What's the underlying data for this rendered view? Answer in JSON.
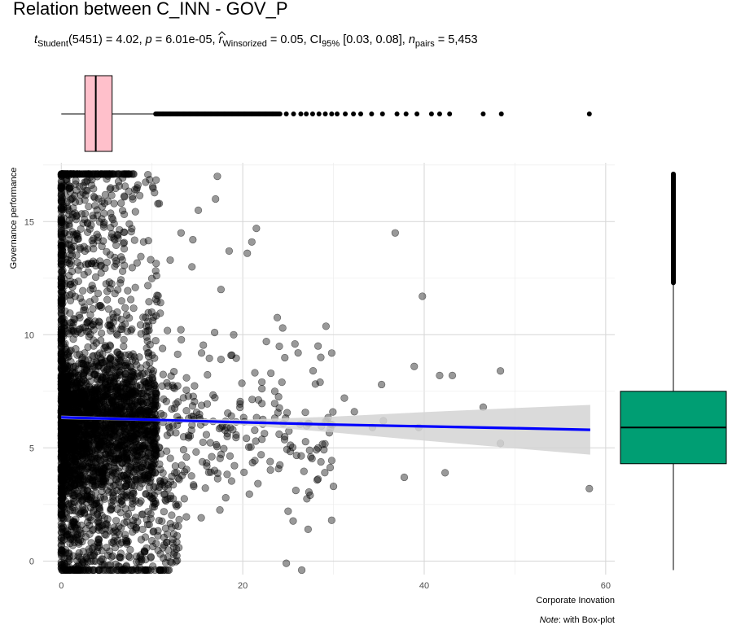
{
  "chart_data": {
    "type": "scatter",
    "title": "Relation between C_INN - GOV_P",
    "subtitle": {
      "t_symbol": "t",
      "t_sub": "Student",
      "df": "(5451) = 4.02, ",
      "p_symbol": "p",
      "p_value": " = 6.01e-05, ",
      "r_symbol": "r",
      "r_sub": "Winsorized",
      "r_value": " = 0.05, CI",
      "ci_sub": "95%",
      "ci_value": " [0.03, 0.08], ",
      "n_symbol": "n",
      "n_sub": "pairs",
      "n_value": " = 5,453"
    },
    "xlabel": "Corporate Inovation",
    "ylabel": "Governance performance",
    "caption_italic": "Note",
    "caption_rest": ": with Box-plot",
    "xlim": [
      -2,
      61
    ],
    "ylim": [
      -0.6,
      17.6
    ],
    "x_ticks": [
      0,
      20,
      40,
      60
    ],
    "y_ticks": [
      0,
      5,
      10,
      15
    ],
    "grid": true,
    "point_color": "#000000",
    "point_opacity": 0.4,
    "regression_line": {
      "color": "#0000ff",
      "points": [
        [
          0,
          6.35
        ],
        [
          10,
          6.24
        ],
        [
          20,
          6.13
        ],
        [
          30,
          6.03
        ],
        [
          40,
          5.95
        ],
        [
          50,
          5.87
        ],
        [
          58.3,
          5.8
        ]
      ],
      "ci_upper": [
        [
          0,
          6.43
        ],
        [
          10,
          6.3
        ],
        [
          20,
          6.25
        ],
        [
          30,
          6.38
        ],
        [
          40,
          6.58
        ],
        [
          50,
          6.76
        ],
        [
          58.3,
          6.9
        ]
      ],
      "ci_lower": [
        [
          0,
          6.27
        ],
        [
          10,
          6.18
        ],
        [
          20,
          6.01
        ],
        [
          30,
          5.68
        ],
        [
          40,
          5.32
        ],
        [
          50,
          4.98
        ],
        [
          58.3,
          4.7
        ]
      ],
      "ci_color": "#d3d3d3"
    },
    "x_marginal_boxplot": {
      "color": "#ffc0cb",
      "q1": 2.6,
      "median": 3.8,
      "q3": 5.6,
      "whisker_low": 0,
      "whisker_high": 10.4,
      "outliers": [
        10.6,
        11.2,
        12.0,
        12.8,
        13.5,
        14.2,
        15.0,
        15.8,
        16.5,
        17.2,
        18.0,
        18.8,
        19.5,
        20.2,
        21.0,
        21.8,
        22.5,
        23.3,
        24.1,
        24.8,
        25.6,
        26.4,
        27.0,
        27.7,
        28.4,
        29.1,
        29.8,
        30.4,
        31.3,
        32.2,
        33.0,
        34.2,
        35.4,
        37.0,
        38.0,
        39.2,
        40.8,
        41.7,
        42.8,
        46.5,
        48.5,
        58.2
      ]
    },
    "y_marginal_boxplot": {
      "color": "#009e73",
      "q1": 4.3,
      "median": 5.9,
      "q3": 7.5,
      "whisker_low": -0.4,
      "whisker_high": 12.3,
      "outlier_band": [
        12.3,
        17.1
      ]
    }
  }
}
